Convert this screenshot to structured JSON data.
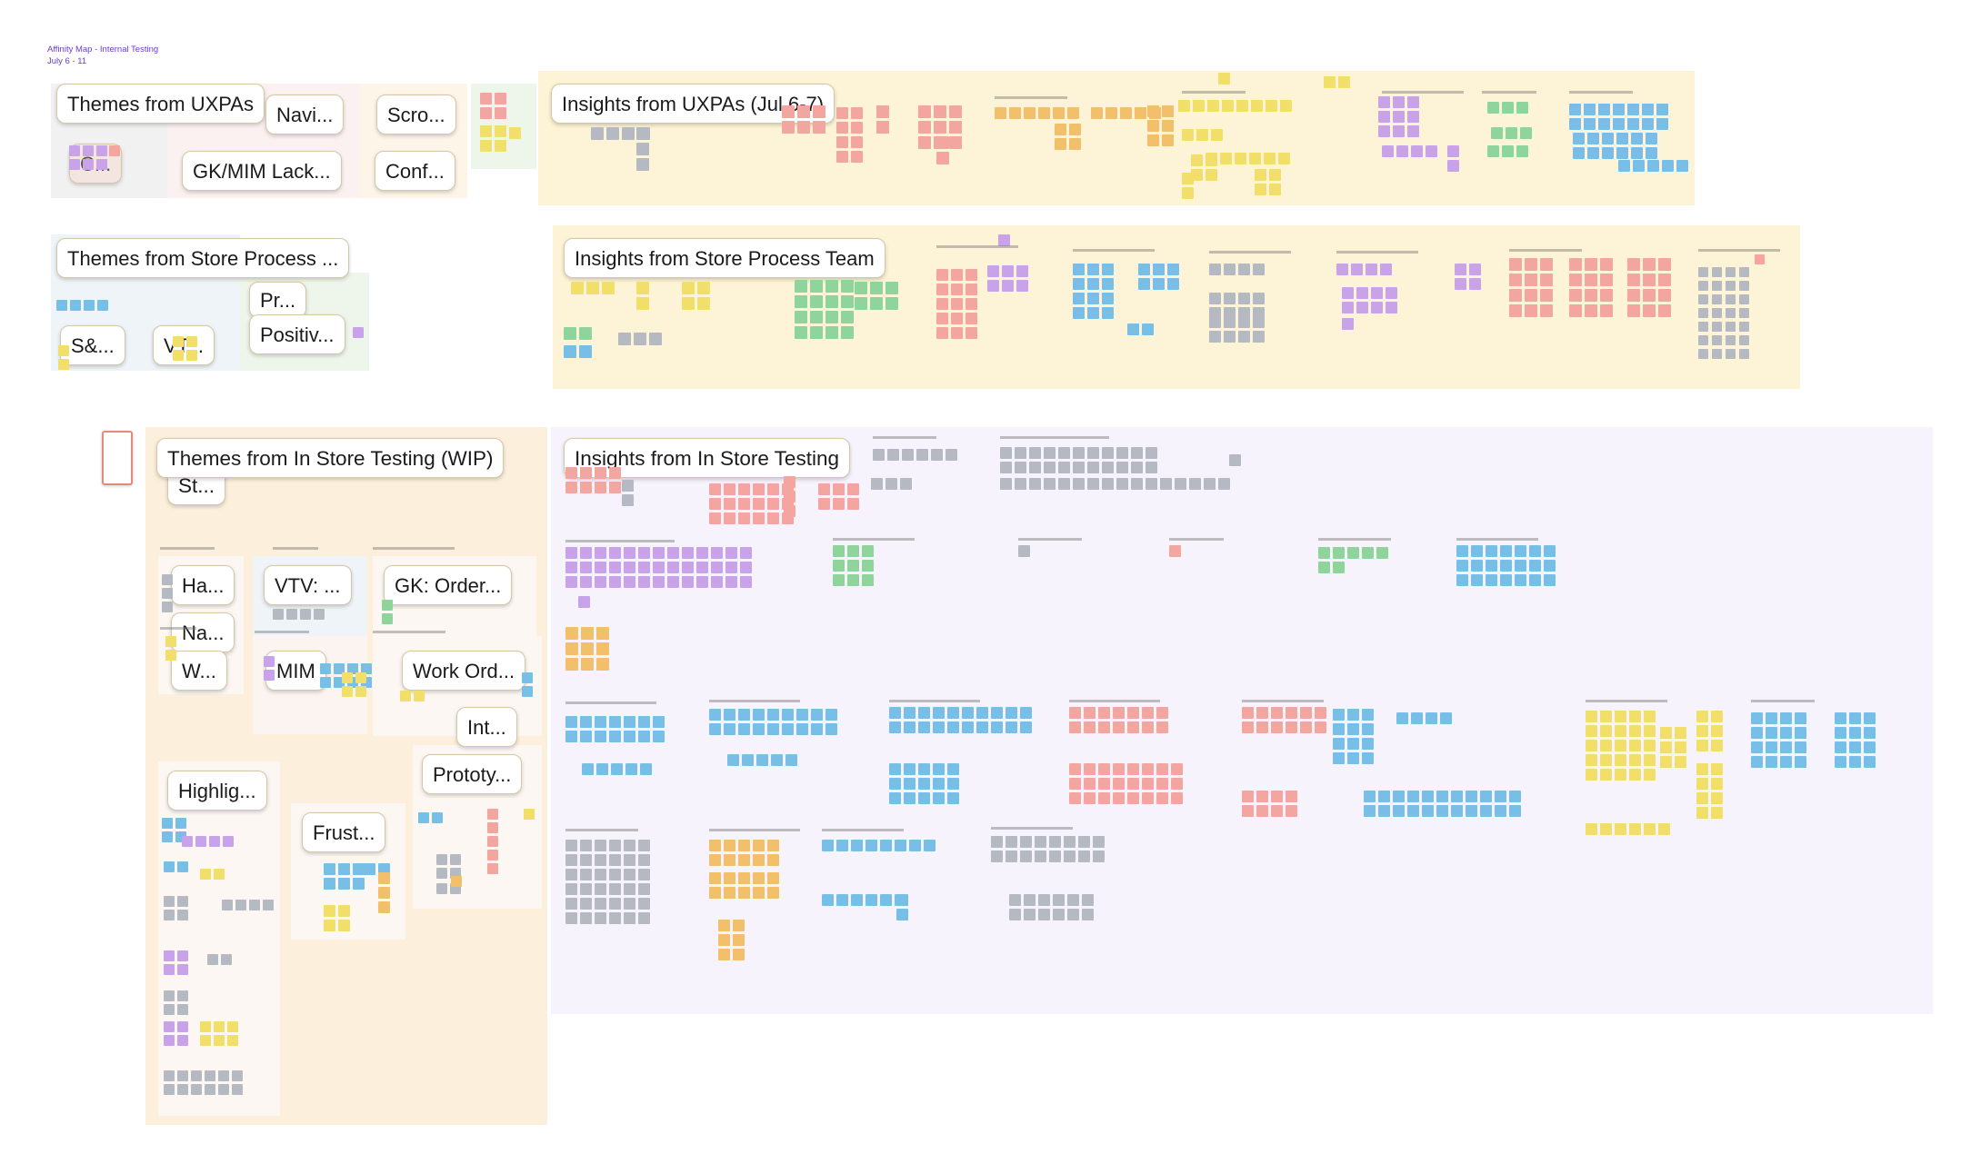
{
  "board": {
    "title": "Affinity Map - Internal Testing",
    "dates": "July 6 - 11"
  },
  "sections": {
    "themes_uxpas": {
      "title": "Themes from UXPAs",
      "clusters": [
        "Navi...",
        "Scro...",
        "C...",
        "GK/MIM Lack...",
        "Conf..."
      ]
    },
    "insights_uxpas": {
      "title": "Insights from UXPAs (Jul 6-7)"
    },
    "themes_store_process": {
      "title": "Themes from Store Process ...",
      "clusters": [
        "Pr...",
        "S&...",
        "VT...",
        "Positiv..."
      ]
    },
    "insights_store_process": {
      "title": "Insights from Store Process Team"
    },
    "themes_in_store": {
      "title": "Themes from In Store Testing (WIP)",
      "clusters": [
        "St...",
        "Ha...",
        "VTV: ...",
        "GK: Order...",
        "Na...",
        "W...",
        "MIM",
        "Work Ord...",
        "Int...",
        "Prototy...",
        "Highlig...",
        "Frust..."
      ]
    },
    "insights_in_store": {
      "title": "Insights from In Store Testing"
    }
  },
  "colors": {
    "board_bg": "#ffffff",
    "yellow_region": "#fdf3d6",
    "peach_region": "#fcefdc",
    "lavender_region": "#f6f3fc",
    "gray_region": "#f1f1f1",
    "sticky_yellow": "#f2df6a",
    "sticky_blue": "#78bfe8",
    "sticky_pink": "#f3a6a0",
    "sticky_purple": "#c9a3ea",
    "sticky_green": "#8fd49a",
    "sticky_gray": "#b5b9c2",
    "sticky_orange": "#f2c06a"
  }
}
